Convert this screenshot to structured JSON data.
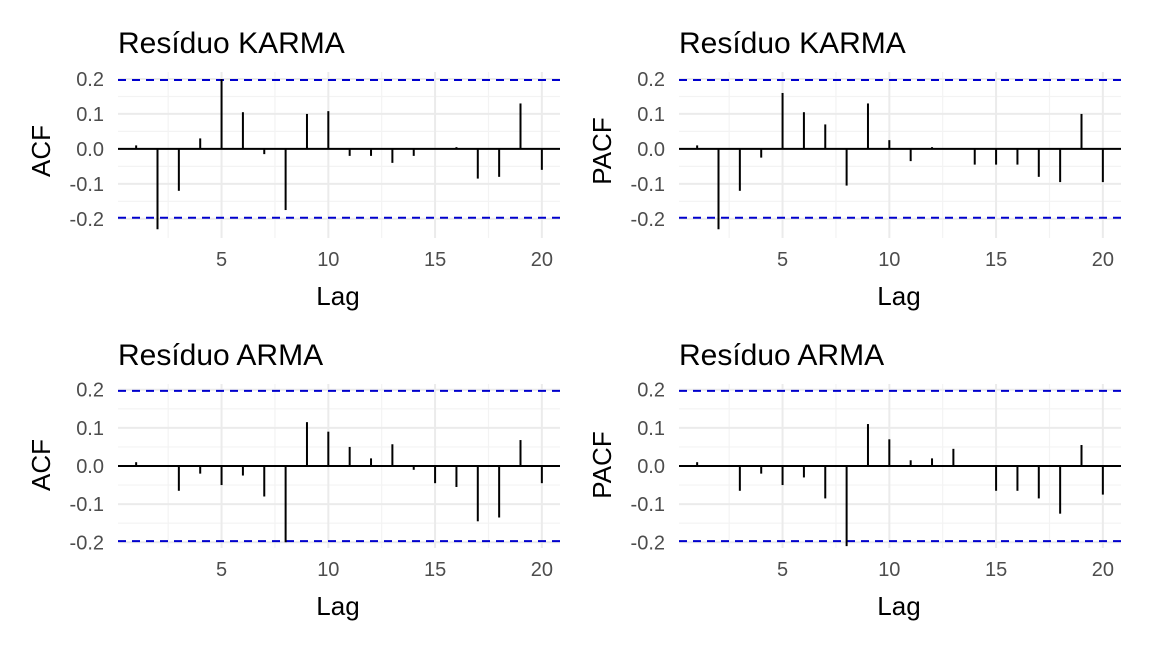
{
  "colors": {
    "bar": "#000000",
    "zero_line": "#000000",
    "confidence_line": "#0000CD",
    "grid_major": "#EBEBEB",
    "grid_minor": "#F3F3F3",
    "background": "#FFFFFF"
  },
  "chart_data": [
    {
      "type": "bar",
      "title": "Resíduo KARMA",
      "xlabel": "Lag",
      "ylabel": "ACF",
      "x": [
        1,
        2,
        3,
        4,
        5,
        6,
        7,
        8,
        9,
        10,
        11,
        12,
        13,
        14,
        15,
        16,
        17,
        18,
        19,
        20
      ],
      "values": [
        0.01,
        -0.23,
        -0.12,
        0.03,
        0.2,
        0.105,
        -0.015,
        -0.175,
        0.1,
        0.108,
        -0.02,
        -0.02,
        -0.04,
        -0.02,
        0.0,
        0.005,
        -0.085,
        -0.08,
        0.13,
        -0.06
      ],
      "confidence_bound": 0.197,
      "xlim": [
        0.15,
        20.85
      ],
      "ylim": [
        -0.255,
        0.22
      ],
      "x_ticks": [
        5,
        10,
        15,
        20
      ],
      "x_tick_labels": [
        "5",
        "10",
        "15",
        "20"
      ],
      "y_ticks": [
        -0.2,
        -0.1,
        0.0,
        0.1,
        0.2
      ],
      "y_tick_labels": [
        "-0.2",
        "-0.1",
        "0.0",
        "0.1",
        "0.2"
      ],
      "grid": true
    },
    {
      "type": "bar",
      "title": "Resíduo KARMA",
      "xlabel": "Lag",
      "ylabel": "PACF",
      "x": [
        1,
        2,
        3,
        4,
        5,
        6,
        7,
        8,
        9,
        10,
        11,
        12,
        13,
        14,
        15,
        16,
        17,
        18,
        19,
        20
      ],
      "values": [
        0.01,
        -0.23,
        -0.12,
        -0.025,
        0.16,
        0.105,
        0.07,
        -0.105,
        0.13,
        0.025,
        -0.035,
        0.005,
        0.0,
        -0.045,
        -0.045,
        -0.045,
        -0.08,
        -0.095,
        0.1,
        -0.095
      ],
      "confidence_bound": 0.197,
      "xlim": [
        0.15,
        20.85
      ],
      "ylim": [
        -0.255,
        0.22
      ],
      "x_ticks": [
        5,
        10,
        15,
        20
      ],
      "x_tick_labels": [
        "5",
        "10",
        "15",
        "20"
      ],
      "y_ticks": [
        -0.2,
        -0.1,
        0.0,
        0.1,
        0.2
      ],
      "y_tick_labels": [
        "-0.2",
        "-0.1",
        "0.0",
        "0.1",
        "0.2"
      ],
      "grid": true
    },
    {
      "type": "bar",
      "title": "Resíduo ARMA",
      "xlabel": "Lag",
      "ylabel": "ACF",
      "x": [
        1,
        2,
        3,
        4,
        5,
        6,
        7,
        8,
        9,
        10,
        11,
        12,
        13,
        14,
        15,
        16,
        17,
        18,
        19,
        20
      ],
      "values": [
        0.01,
        0.0,
        -0.065,
        -0.02,
        -0.05,
        -0.025,
        -0.08,
        -0.2,
        0.115,
        0.09,
        0.05,
        0.02,
        0.057,
        -0.01,
        -0.045,
        -0.055,
        -0.145,
        -0.135,
        0.068,
        -0.045
      ],
      "confidence_bound": 0.197,
      "xlim": [
        0.15,
        20.85
      ],
      "ylim": [
        -0.215,
        0.215
      ],
      "x_ticks": [
        5,
        10,
        15,
        20
      ],
      "x_tick_labels": [
        "5",
        "10",
        "15",
        "20"
      ],
      "y_ticks": [
        -0.2,
        -0.1,
        0.0,
        0.1,
        0.2
      ],
      "y_tick_labels": [
        "-0.2",
        "-0.1",
        "0.0",
        "0.1",
        "0.2"
      ],
      "grid": true
    },
    {
      "type": "bar",
      "title": "Resíduo ARMA",
      "xlabel": "Lag",
      "ylabel": "PACF",
      "x": [
        1,
        2,
        3,
        4,
        5,
        6,
        7,
        8,
        9,
        10,
        11,
        12,
        13,
        14,
        15,
        16,
        17,
        18,
        19,
        20
      ],
      "values": [
        0.01,
        0.0,
        -0.065,
        -0.02,
        -0.05,
        -0.03,
        -0.085,
        -0.21,
        0.11,
        0.07,
        0.015,
        0.02,
        0.045,
        0.0,
        -0.065,
        -0.065,
        -0.085,
        -0.125,
        0.055,
        -0.075
      ],
      "confidence_bound": 0.197,
      "xlim": [
        0.15,
        20.85
      ],
      "ylim": [
        -0.215,
        0.215
      ],
      "x_ticks": [
        5,
        10,
        15,
        20
      ],
      "x_tick_labels": [
        "5",
        "10",
        "15",
        "20"
      ],
      "y_ticks": [
        -0.2,
        -0.1,
        0.0,
        0.1,
        0.2
      ],
      "y_tick_labels": [
        "-0.2",
        "-0.1",
        "0.0",
        "0.1",
        "0.2"
      ],
      "grid": true
    }
  ]
}
